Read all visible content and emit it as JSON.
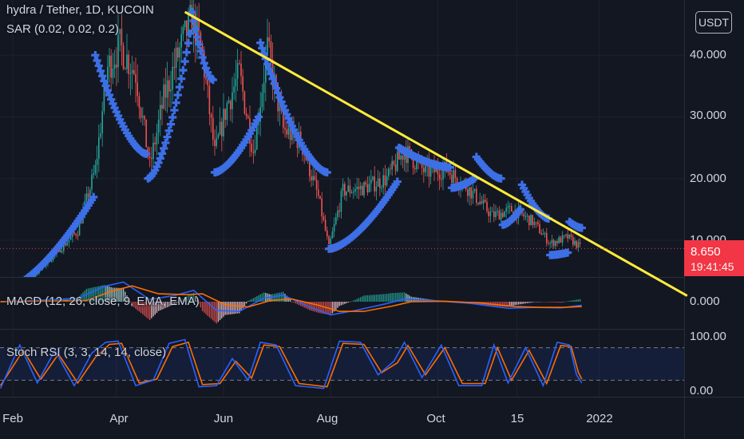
{
  "header": {
    "symbol_line": "hydra / Tether, 1D, KUCOIN",
    "sar_legend": "SAR (0.02, 0.02, 0.2)",
    "macd_legend": "MACD (12, 26, close, 9, EMA, EMA)",
    "stoch_legend": "Stoch RSI (3, 3, 14, 14, close)",
    "currency_button": "USDT"
  },
  "price_tag": {
    "price": "8.650",
    "countdown": "19:41:45"
  },
  "colors": {
    "background": "#131722",
    "up_candle": "#26a69a",
    "down_candle": "#ef5350",
    "sar": "#3d6fe6",
    "trendline": "#ffeb3b",
    "macd_line": "#2962ff",
    "signal_line": "#ff6d00",
    "stoch_k": "#2962ff",
    "stoch_d": "#ff6d00",
    "price_tag": "#f23645"
  },
  "chart_data": [
    {
      "type": "candlestick",
      "title": "hydra / Tether, 1D, KUCOIN",
      "x_tick_labels": [
        "Feb",
        "Apr",
        "Jun",
        "Aug",
        "Oct",
        "15",
        "2022"
      ],
      "y_tick_labels": [
        "40.000",
        "30.000",
        "20.000",
        "10.000"
      ],
      "ylim": [
        1.5,
        47
      ],
      "close_path": [
        [
          "2021-01-25",
          2.6
        ],
        [
          "2021-02-10",
          3.4
        ],
        [
          "2021-02-25",
          7.8
        ],
        [
          "2021-03-10",
          11.5
        ],
        [
          "2021-03-20",
          21.5
        ],
        [
          "2021-03-27",
          38.0
        ],
        [
          "2021-04-03",
          41.5
        ],
        [
          "2021-04-12",
          37.0
        ],
        [
          "2021-04-20",
          22.0
        ],
        [
          "2021-04-28",
          33.0
        ],
        [
          "2021-05-06",
          40.0
        ],
        [
          "2021-05-14",
          46.0
        ],
        [
          "2021-05-20",
          40.0
        ],
        [
          "2021-05-27",
          24.0
        ],
        [
          "2021-06-03",
          32.0
        ],
        [
          "2021-06-10",
          37.0
        ],
        [
          "2021-06-18",
          24.5
        ],
        [
          "2021-06-26",
          41.0
        ],
        [
          "2021-07-05",
          28.0
        ],
        [
          "2021-07-15",
          26.0
        ],
        [
          "2021-07-25",
          17.0
        ],
        [
          "2021-07-31",
          8.8
        ],
        [
          "2021-08-08",
          18.0
        ],
        [
          "2021-08-20",
          18.5
        ],
        [
          "2021-09-02",
          20.0
        ],
        [
          "2021-09-12",
          24.5
        ],
        [
          "2021-09-24",
          21.0
        ],
        [
          "2021-10-06",
          21.5
        ],
        [
          "2021-10-18",
          18.5
        ],
        [
          "2021-11-01",
          14.0
        ],
        [
          "2021-11-13",
          15.0
        ],
        [
          "2021-11-24",
          13.0
        ],
        [
          "2021-12-04",
          9.5
        ],
        [
          "2021-12-14",
          10.5
        ],
        [
          "2021-12-22",
          8.65
        ]
      ],
      "sar_segments": [
        {
          "from": "2021-01-25",
          "to": "2021-03-19",
          "start": 1.8,
          "end": 17.0,
          "side": "below"
        },
        {
          "from": "2021-03-20",
          "to": "2021-04-18",
          "start": 40.0,
          "end": 24.0,
          "side": "above"
        },
        {
          "from": "2021-04-19",
          "to": "2021-05-13",
          "start": 20.0,
          "end": 43.5,
          "side": "below"
        },
        {
          "from": "2021-05-14",
          "to": "2021-05-26",
          "start": 47.0,
          "end": 36.0,
          "side": "above"
        },
        {
          "from": "2021-05-27",
          "to": "2021-06-21",
          "start": 21.0,
          "end": 30.0,
          "side": "below"
        },
        {
          "from": "2021-06-22",
          "to": "2021-07-30",
          "start": 42.0,
          "end": 21.0,
          "side": "above"
        },
        {
          "from": "2021-07-31",
          "to": "2021-09-08",
          "start": 8.6,
          "end": 19.5,
          "side": "below"
        },
        {
          "from": "2021-09-09",
          "to": "2021-10-08",
          "start": 25.0,
          "end": 21.8,
          "side": "above"
        },
        {
          "from": "2021-10-09",
          "to": "2021-10-22",
          "start": 18.5,
          "end": 20.0,
          "side": "below"
        },
        {
          "from": "2021-10-23",
          "to": "2021-11-06",
          "start": 23.5,
          "end": 20.0,
          "side": "above"
        },
        {
          "from": "2021-11-07",
          "to": "2021-11-17",
          "start": 12.5,
          "end": 15.0,
          "side": "below"
        },
        {
          "from": "2021-11-18",
          "to": "2021-12-03",
          "start": 19.0,
          "end": 13.5,
          "side": "above"
        },
        {
          "from": "2021-12-04",
          "to": "2021-12-14",
          "start": 7.6,
          "end": 8.0,
          "side": "below"
        },
        {
          "from": "2021-12-15",
          "to": "2021-12-22",
          "start": 13.0,
          "end": 12.0,
          "side": "above"
        }
      ],
      "trendline": {
        "from": [
          "2021-05-10",
          47.0
        ],
        "to": [
          "2022-02-20",
          1.0
        ]
      },
      "last_price": 8.65
    },
    {
      "type": "line",
      "name": "MACD",
      "y_tick_labels": [
        "0.000"
      ],
      "ylim": [
        -6,
        5
      ],
      "macd_path": [
        [
          "2021-01-25",
          0.0
        ],
        [
          "2021-03-10",
          0.7
        ],
        [
          "2021-03-25",
          3.5
        ],
        [
          "2021-04-05",
          4.5
        ],
        [
          "2021-04-20",
          0.5
        ],
        [
          "2021-05-05",
          1.5
        ],
        [
          "2021-05-15",
          2.6
        ],
        [
          "2021-05-28",
          -2.0
        ],
        [
          "2021-06-10",
          -2.2
        ],
        [
          "2021-06-24",
          0.8
        ],
        [
          "2021-07-05",
          1.5
        ],
        [
          "2021-07-20",
          -1.2
        ],
        [
          "2021-08-01",
          -3.0
        ],
        [
          "2021-08-15",
          -2.0
        ],
        [
          "2021-09-01",
          -0.5
        ],
        [
          "2021-09-12",
          0.6
        ],
        [
          "2021-10-01",
          0.2
        ],
        [
          "2021-10-20",
          -0.4
        ],
        [
          "2021-11-10",
          -1.5
        ],
        [
          "2021-11-25",
          -1.3
        ],
        [
          "2021-12-10",
          -1.4
        ],
        [
          "2021-12-22",
          -0.8
        ]
      ],
      "signal_path": [
        [
          "2021-01-25",
          0.0
        ],
        [
          "2021-03-15",
          0.3
        ],
        [
          "2021-03-30",
          2.5
        ],
        [
          "2021-04-10",
          3.6
        ],
        [
          "2021-04-25",
          1.8
        ],
        [
          "2021-05-12",
          1.6
        ],
        [
          "2021-05-20",
          1.8
        ],
        [
          "2021-06-02",
          -0.7
        ],
        [
          "2021-06-15",
          -1.2
        ],
        [
          "2021-06-28",
          0.3
        ],
        [
          "2021-07-10",
          0.6
        ],
        [
          "2021-07-25",
          -0.8
        ],
        [
          "2021-08-06",
          -2.2
        ],
        [
          "2021-08-20",
          -2.2
        ],
        [
          "2021-09-05",
          -1.0
        ],
        [
          "2021-09-16",
          0.0
        ],
        [
          "2021-10-05",
          0.1
        ],
        [
          "2021-10-25",
          -0.3
        ],
        [
          "2021-11-14",
          -1.1
        ],
        [
          "2021-11-28",
          -1.3
        ],
        [
          "2021-12-12",
          -1.3
        ],
        [
          "2021-12-22",
          -1.1
        ]
      ]
    },
    {
      "type": "line",
      "name": "Stoch RSI",
      "y_tick_labels": [
        "100.00",
        "0.00"
      ],
      "ylim": [
        0,
        100
      ],
      "bands": [
        80,
        20
      ],
      "k_path": [
        [
          "2021-01-25",
          5
        ],
        [
          "2021-02-05",
          85
        ],
        [
          "2021-02-15",
          15
        ],
        [
          "2021-02-25",
          75
        ],
        [
          "2021-03-08",
          10
        ],
        [
          "2021-03-18",
          70
        ],
        [
          "2021-03-26",
          90
        ],
        [
          "2021-04-02",
          92
        ],
        [
          "2021-04-12",
          10
        ],
        [
          "2021-04-22",
          20
        ],
        [
          "2021-05-01",
          88
        ],
        [
          "2021-05-10",
          95
        ],
        [
          "2021-05-18",
          8
        ],
        [
          "2021-05-28",
          10
        ],
        [
          "2021-06-06",
          60
        ],
        [
          "2021-06-15",
          20
        ],
        [
          "2021-06-22",
          90
        ],
        [
          "2021-07-01",
          85
        ],
        [
          "2021-07-12",
          10
        ],
        [
          "2021-07-28",
          5
        ],
        [
          "2021-08-06",
          92
        ],
        [
          "2021-08-18",
          90
        ],
        [
          "2021-08-28",
          30
        ],
        [
          "2021-09-06",
          55
        ],
        [
          "2021-09-12",
          90
        ],
        [
          "2021-09-22",
          25
        ],
        [
          "2021-10-03",
          85
        ],
        [
          "2021-10-13",
          10
        ],
        [
          "2021-10-26",
          10
        ],
        [
          "2021-11-02",
          85
        ],
        [
          "2021-11-10",
          15
        ],
        [
          "2021-11-20",
          80
        ],
        [
          "2021-11-30",
          10
        ],
        [
          "2021-12-08",
          90
        ],
        [
          "2021-12-15",
          85
        ],
        [
          "2021-12-19",
          30
        ],
        [
          "2021-12-22",
          15
        ]
      ],
      "d_path": [
        [
          "2021-01-25",
          10
        ],
        [
          "2021-02-07",
          75
        ],
        [
          "2021-02-17",
          22
        ],
        [
          "2021-02-27",
          68
        ],
        [
          "2021-03-10",
          15
        ],
        [
          "2021-03-20",
          62
        ],
        [
          "2021-03-28",
          86
        ],
        [
          "2021-04-04",
          88
        ],
        [
          "2021-04-14",
          15
        ],
        [
          "2021-04-24",
          22
        ],
        [
          "2021-05-03",
          82
        ],
        [
          "2021-05-12",
          90
        ],
        [
          "2021-05-20",
          12
        ],
        [
          "2021-05-30",
          14
        ],
        [
          "2021-06-08",
          55
        ],
        [
          "2021-06-17",
          24
        ],
        [
          "2021-06-24",
          85
        ],
        [
          "2021-07-03",
          82
        ],
        [
          "2021-07-14",
          14
        ],
        [
          "2021-07-30",
          8
        ],
        [
          "2021-08-08",
          88
        ],
        [
          "2021-08-20",
          86
        ],
        [
          "2021-08-30",
          34
        ],
        [
          "2021-09-08",
          52
        ],
        [
          "2021-09-14",
          84
        ],
        [
          "2021-09-24",
          30
        ],
        [
          "2021-10-05",
          80
        ],
        [
          "2021-10-15",
          14
        ],
        [
          "2021-10-28",
          14
        ],
        [
          "2021-11-04",
          80
        ],
        [
          "2021-11-12",
          20
        ],
        [
          "2021-11-22",
          75
        ],
        [
          "2021-12-02",
          14
        ],
        [
          "2021-12-10",
          84
        ],
        [
          "2021-12-16",
          82
        ],
        [
          "2021-12-20",
          35
        ],
        [
          "2021-12-22",
          22
        ]
      ]
    }
  ]
}
